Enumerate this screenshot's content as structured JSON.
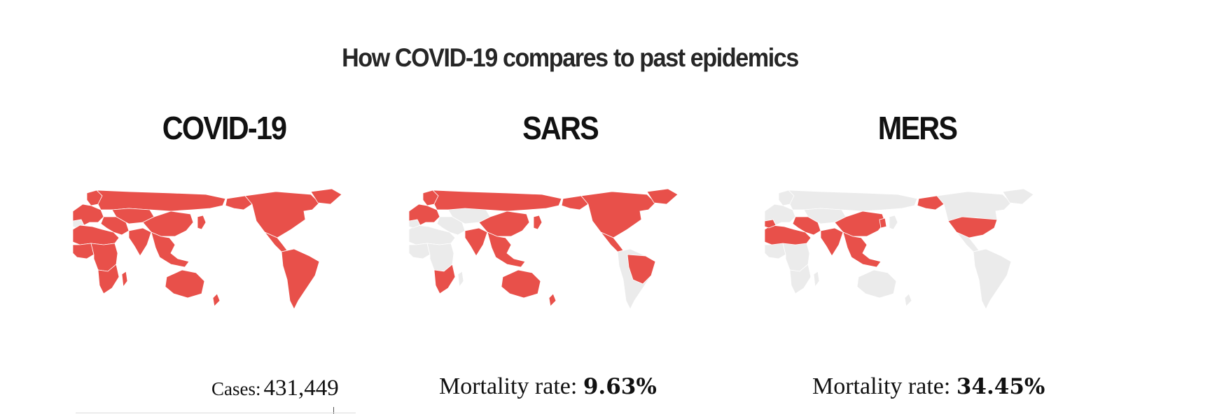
{
  "title": "How COVID-19 compares to past epidemics",
  "colors": {
    "affected": "#e8504a",
    "unaffected": "#ebebeb",
    "border": "#ffffff"
  },
  "panels": [
    {
      "name": "COVID-19",
      "stat_label": "Cases:",
      "stat_value": "431,449",
      "affected_regions": [
        "north-america",
        "central-america",
        "south-america",
        "greenland",
        "europe",
        "scandinavia",
        "russia",
        "middle-east",
        "central-asia",
        "china",
        "india",
        "southeast-asia",
        "japan",
        "africa-north",
        "africa-west",
        "africa-central",
        "africa-south",
        "madagascar",
        "australia",
        "new-zealand",
        "alaska"
      ]
    },
    {
      "name": "SARS",
      "stat_label": "Mortality rate:",
      "stat_value": "9.63%",
      "affected_regions": [
        "north-america",
        "alaska",
        "greenland",
        "europe",
        "scandinavia",
        "russia",
        "china",
        "india",
        "southeast-asia",
        "japan",
        "australia",
        "new-zealand",
        "africa-south",
        "central-america",
        "brazil"
      ]
    },
    {
      "name": "MERS",
      "stat_label": "Mortality rate:",
      "stat_value": "34.45%",
      "affected_regions": [
        "usa",
        "alaska",
        "iberia",
        "africa-north",
        "middle-east",
        "china",
        "india",
        "southeast-asia",
        "korea"
      ]
    }
  ]
}
